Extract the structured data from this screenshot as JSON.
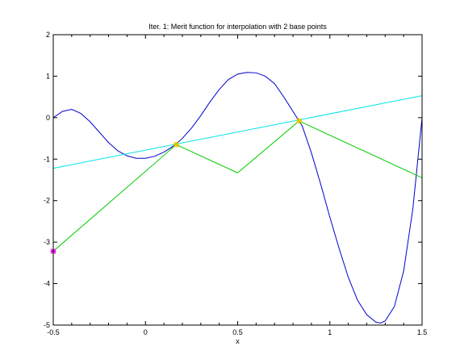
{
  "chart_data": {
    "type": "line",
    "title": "Iter. 1: Merit function for interpolation with 2 base points",
    "xlabel": "x",
    "ylabel": "",
    "xlim": [
      -0.5,
      1.5
    ],
    "ylim": [
      -5,
      2
    ],
    "x_ticks": [
      -0.5,
      0,
      0.5,
      1,
      1.5
    ],
    "x_tick_labels": [
      "-0.5",
      "0",
      "0.5",
      "1",
      "1.5"
    ],
    "y_ticks": [
      -5,
      -4,
      -3,
      -2,
      -1,
      0,
      1,
      2
    ],
    "y_tick_labels": [
      "-5",
      "-4",
      "-3",
      "-2",
      "-1",
      "0",
      "1",
      "2"
    ],
    "grid": false,
    "series": [
      {
        "color": "#0000cc",
        "x": [
          -0.5,
          -0.45,
          -0.4,
          -0.35,
          -0.3,
          -0.25,
          -0.2,
          -0.15,
          -0.1,
          -0.05,
          0.0,
          0.05,
          0.1,
          0.15,
          0.2,
          0.25,
          0.3,
          0.35,
          0.4,
          0.45,
          0.5,
          0.55,
          0.6,
          0.65,
          0.7,
          0.75,
          0.8,
          0.85,
          0.9,
          0.95,
          1.0,
          1.05,
          1.1,
          1.15,
          1.2,
          1.25,
          1.275,
          1.3,
          1.35,
          1.4,
          1.45,
          1.5
        ],
        "values": [
          0.0,
          0.15,
          0.2,
          0.1,
          -0.1,
          -0.35,
          -0.6,
          -0.8,
          -0.92,
          -0.98,
          -0.98,
          -0.93,
          -0.83,
          -0.69,
          -0.5,
          -0.25,
          0.05,
          0.38,
          0.68,
          0.92,
          1.05,
          1.09,
          1.08,
          1.0,
          0.82,
          0.5,
          0.15,
          -0.2,
          -0.85,
          -1.6,
          -2.4,
          -3.15,
          -3.85,
          -4.4,
          -4.75,
          -4.93,
          -4.95,
          -4.9,
          -4.55,
          -3.7,
          -2.2,
          0.0
        ]
      },
      {
        "color": "#00e5e5",
        "x": [
          -0.5,
          1.5
        ],
        "values": [
          -1.22,
          0.53
        ]
      },
      {
        "color": "#00cc00",
        "x": [
          -0.5,
          0.167,
          0.5,
          0.833,
          1.5
        ],
        "values": [
          -3.22,
          -0.65,
          -1.33,
          -0.08,
          -1.45
        ]
      }
    ],
    "markers": [
      {
        "x": 0.167,
        "y": -0.65,
        "color": "#e6c800"
      },
      {
        "x": 0.833,
        "y": -0.08,
        "color": "#e6c800"
      },
      {
        "x": -0.5,
        "y": -3.22,
        "color": "#e600e6"
      }
    ]
  }
}
